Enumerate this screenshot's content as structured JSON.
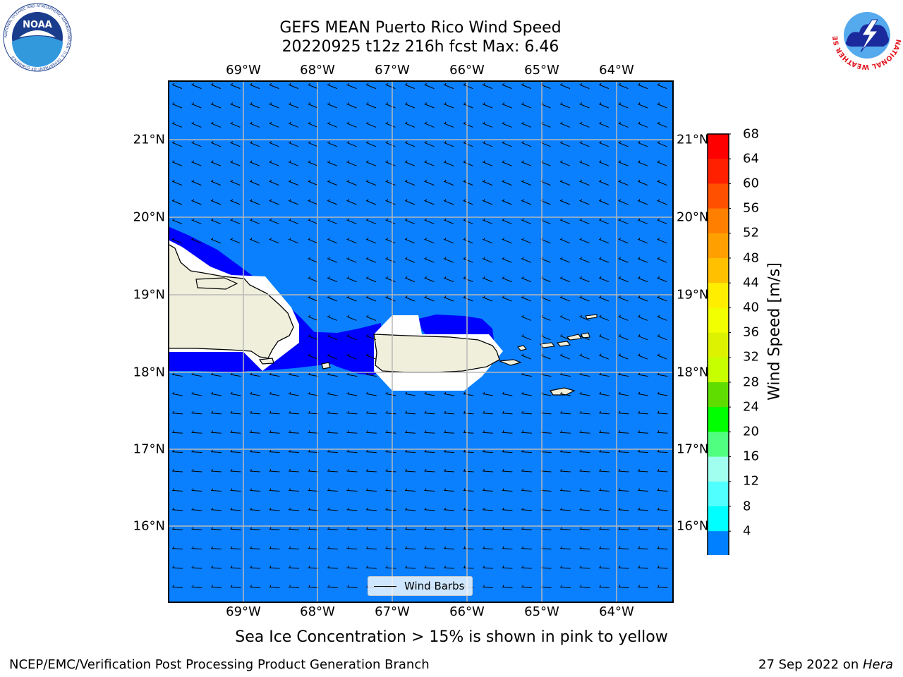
{
  "title_line1": "GEFS MEAN Puerto Rico Wind Speed",
  "title_line2": "20220925 t12z 216h fcst   Max: 6.46",
  "lon_labels": [
    "69°W",
    "68°W",
    "67°W",
    "66°W",
    "65°W",
    "64°W"
  ],
  "lat_labels": [
    "21°N",
    "20°N",
    "19°N",
    "18°N",
    "17°N",
    "16°N"
  ],
  "colorbar": {
    "label": "Wind Speed [m/s]",
    "ticks": [
      "68",
      "64",
      "60",
      "56",
      "52",
      "48",
      "44",
      "40",
      "36",
      "32",
      "28",
      "24",
      "20",
      "16",
      "12",
      "8",
      "4"
    ],
    "colors_top_to_bottom": [
      "#ff0000",
      "#ff2000",
      "#ff5000",
      "#ff8000",
      "#ffa000",
      "#ffc000",
      "#ffee00",
      "#f2ff00",
      "#ddf200",
      "#c8ff00",
      "#60dd00",
      "#00ff00",
      "#50ff80",
      "#a0ffee",
      "#50ffff",
      "#00ffff",
      "#00ccff"
    ],
    "base_color": "#0080ff",
    "extend_color": "#0000ff"
  },
  "map_colors": {
    "ocean": "#0a80ff",
    "calm": "#0000ff",
    "land": "#efefdc"
  },
  "legend_label": "Wind Barbs",
  "footer_note": "Sea Ice Concentration > 15% is shown in pink to yellow",
  "credit_left": "NCEP/EMC/Verification Post Processing Product Generation Branch",
  "credit_right_date": "27 Sep 2022 on ",
  "credit_right_host": "Hera",
  "logos": {
    "noaa_text": "NOAA",
    "noaa_ring": "NATIONAL OCEANIC AND ATMOSPHERIC ADMINISTRATION · U.S. DEPARTMENT OF COMMERCE ·",
    "nws_ring": "NATIONAL WEATHER SERVICE"
  }
}
